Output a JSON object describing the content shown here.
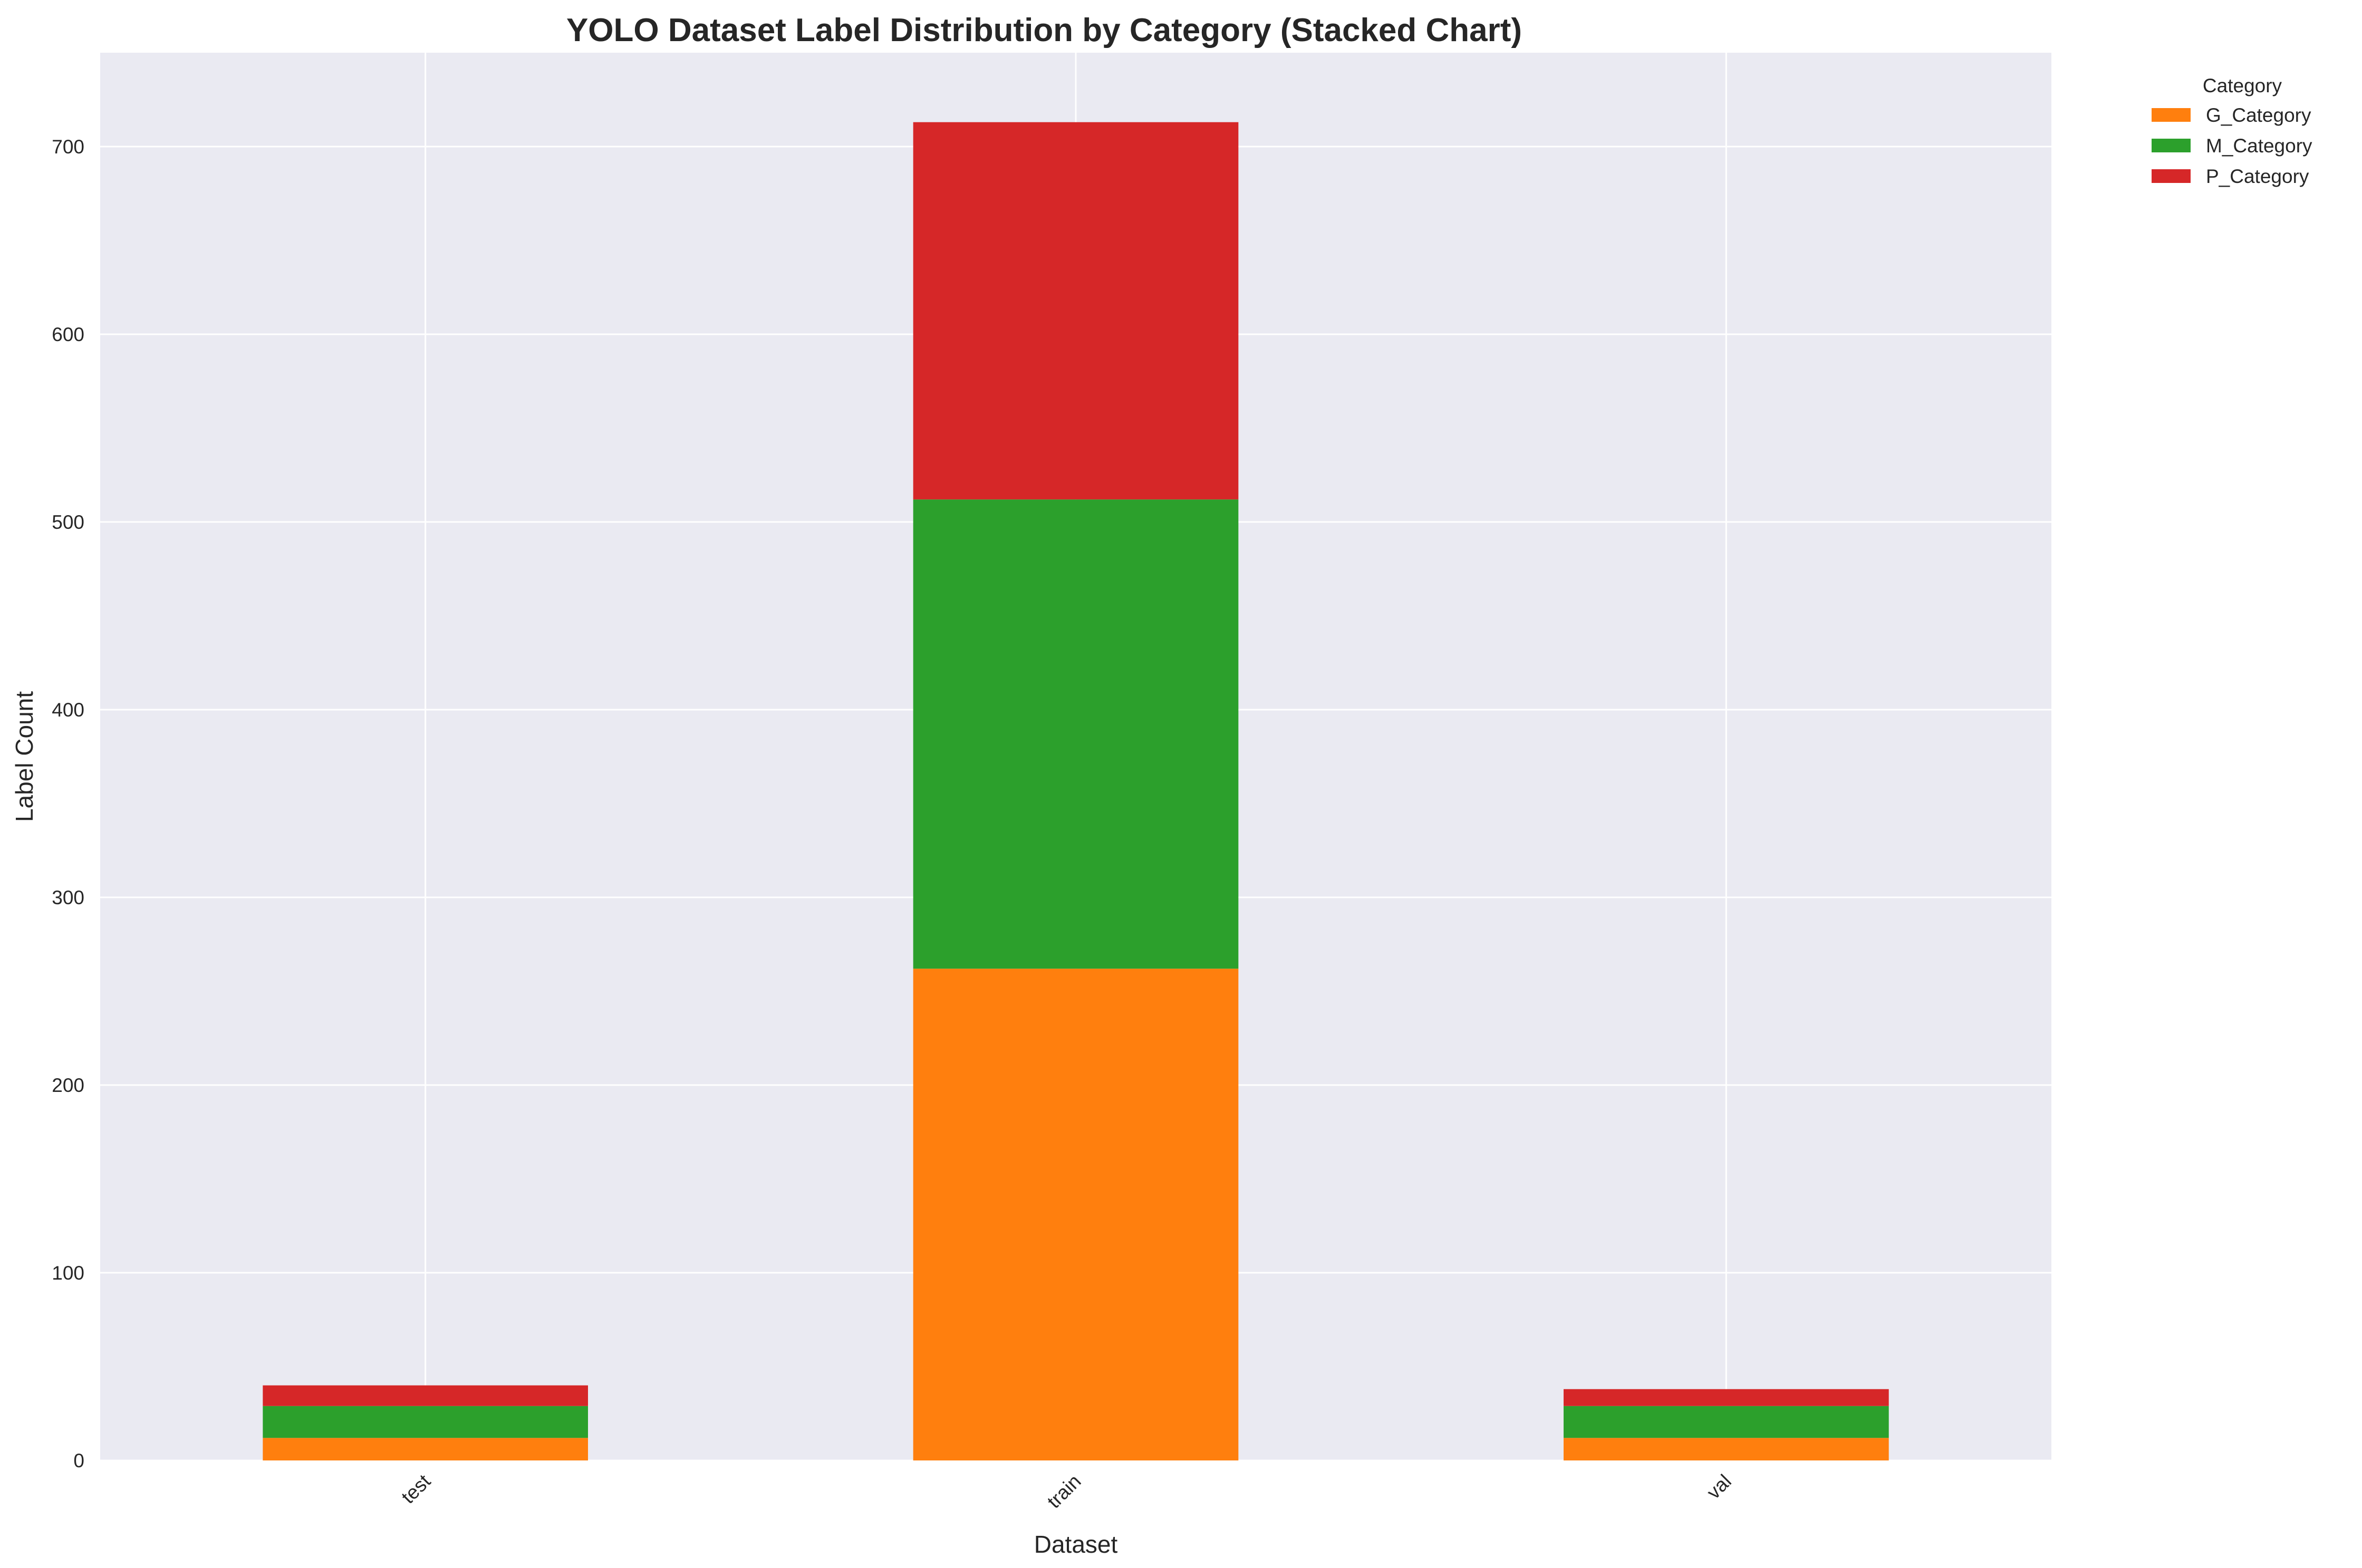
{
  "chart_data": {
    "type": "bar",
    "stacked": true,
    "title": "YOLO Dataset Label Distribution by Category (Stacked Chart)",
    "xlabel": "Dataset",
    "ylabel": "Label Count",
    "categories": [
      "test",
      "train",
      "val"
    ],
    "series": [
      {
        "name": "G_Category",
        "color": "#ff7f0e",
        "values": [
          12,
          262,
          12
        ]
      },
      {
        "name": "M_Category",
        "color": "#2ca02c",
        "values": [
          17,
          250,
          17
        ]
      },
      {
        "name": "P_Category",
        "color": "#d62728",
        "values": [
          11,
          201,
          9
        ]
      }
    ],
    "ylim": [
      0,
      750
    ],
    "yticks": [
      0,
      100,
      200,
      300,
      400,
      500,
      600,
      700
    ],
    "grid": true,
    "legend": {
      "title": "Category",
      "placement": "outside-top-right"
    },
    "colors": {
      "plot_background": "#eaeaf2",
      "grid": "#ffffff",
      "text": "#262626"
    }
  }
}
